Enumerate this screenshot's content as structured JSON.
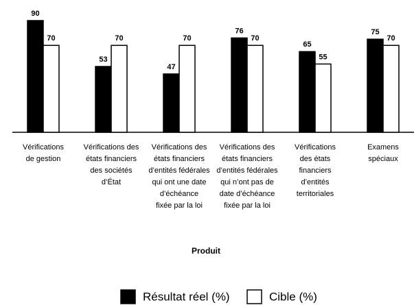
{
  "chart_data": {
    "type": "bar",
    "x_label": "Produit",
    "categories": [
      "Vérifications\nde gestion",
      "Vérifications des\nétats financiers\ndes sociétés\nd’État",
      "Vérifications des\nétats financiers\nd’entités fédérales\nqui ont une date\nd’échéance\nfixée par la loi",
      "Vérifications des\nétats financiers\nd’entités fédérales\nqui n’ont pas de\ndate d’échéance\nfixée par la loi",
      "Vérifications\ndes états\nfinanciers\nd’entités\nterritoriales",
      "Examens\nspéciaux"
    ],
    "series": [
      {
        "name": "Résultat réel (%)",
        "color": "#000000",
        "values": [
          90,
          53,
          47,
          76,
          65,
          75
        ]
      },
      {
        "name": "Cible (%)",
        "color": "#ffffff",
        "values": [
          70,
          70,
          70,
          70,
          55,
          70
        ]
      }
    ],
    "ylim": [
      0,
      90
    ],
    "legend": "bottom"
  }
}
